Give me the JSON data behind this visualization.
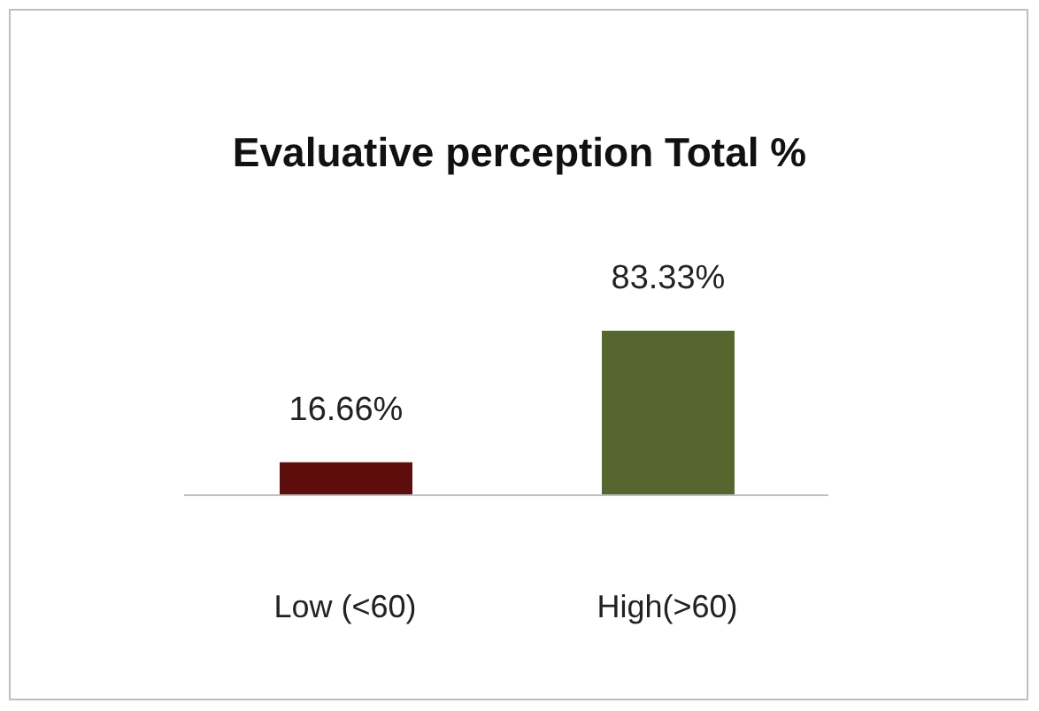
{
  "chart_data": {
    "type": "bar",
    "title": "Evaluative perception Total %",
    "categories": [
      "Low (<60)",
      "High(>60)"
    ],
    "values": [
      16.66,
      83.33
    ],
    "colors": [
      "#5e0d0d",
      "#56662f"
    ],
    "value_labels": [
      "16.66%",
      "83.33%"
    ]
  }
}
